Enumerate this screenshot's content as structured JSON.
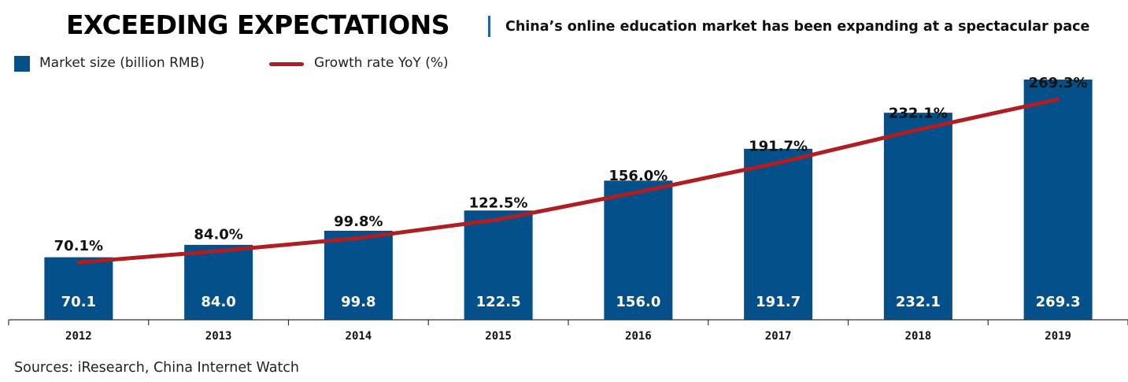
{
  "header": {
    "title": "EXCEEDING EXPECTATIONS",
    "subtitle": "China’s online education market has been expanding at a spectacular pace"
  },
  "legend": {
    "bar_label": "Market size (billion RMB)",
    "line_label": "Growth rate YoY (%)"
  },
  "footer": {
    "source": "Sources: iResearch, China Internet Watch"
  },
  "colors": {
    "bar": "#04508a",
    "line": "#ae1e23",
    "divider": "#1f63a8"
  },
  "chart_data": {
    "type": "bar",
    "categories": [
      "2012",
      "2013",
      "2014",
      "2015",
      "2016",
      "2017",
      "2018",
      "2019"
    ],
    "series": [
      {
        "name": "Market size (billion RMB)",
        "type": "bar",
        "values": [
          70.1,
          84.0,
          99.8,
          122.5,
          156.0,
          191.7,
          232.1,
          269.3
        ],
        "labels": [
          "70.1",
          "84.0",
          "99.8",
          "122.5",
          "156.0",
          "191.7",
          "232.1",
          "269.3"
        ]
      },
      {
        "name": "Growth rate YoY (%)",
        "type": "line",
        "values": [
          70.1,
          84.0,
          99.8,
          122.5,
          156.0,
          191.7,
          232.1,
          269.3
        ],
        "labels": [
          "70.1%",
          "84.0%",
          "99.8%",
          "122.5%",
          "156.0%",
          "191.7%",
          "232.1%",
          "269.3%"
        ]
      }
    ],
    "ylim": [
      0,
      269.3
    ],
    "grid": false,
    "legend_position": "top-left"
  }
}
